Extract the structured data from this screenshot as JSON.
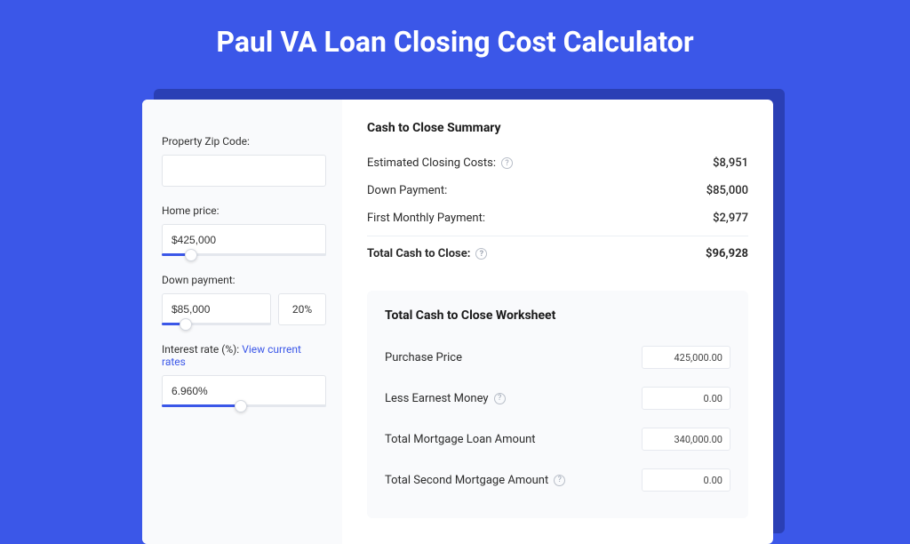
{
  "colors": {
    "page_bg": "#3b57e8",
    "shadow": "#2a3fb5",
    "card_bg": "#ffffff",
    "left_panel_bg": "#f9fafc",
    "input_border": "#e2e5ea",
    "slider_track": "#e4e7ed",
    "slider_fill": "#3b57e8",
    "link": "#3b57e8",
    "text_primary": "#1a1a1a",
    "text_body": "#2b2b2b",
    "help_border": "#b8bec8"
  },
  "hero": {
    "title": "Paul VA Loan Closing Cost Calculator"
  },
  "form": {
    "zip_label": "Property Zip Code:",
    "zip_value": "",
    "home_price_label": "Home price:",
    "home_price_value": "$425,000",
    "home_price_slider_pct": 18,
    "down_payment_label": "Down payment:",
    "down_payment_value": "$85,000",
    "down_payment_pct": "20%",
    "down_payment_slider_pct": 22,
    "interest_label_prefix": "Interest rate (%): ",
    "interest_link_text": "View current rates",
    "interest_value": "6.960%",
    "interest_slider_pct": 48
  },
  "summary": {
    "title": "Cash to Close Summary",
    "rows": [
      {
        "label": "Estimated Closing Costs:",
        "help": true,
        "value": "$8,951"
      },
      {
        "label": "Down Payment:",
        "help": false,
        "value": "$85,000"
      },
      {
        "label": "First Monthly Payment:",
        "help": false,
        "value": "$2,977"
      }
    ],
    "total": {
      "label": "Total Cash to Close:",
      "help": true,
      "value": "$96,928"
    }
  },
  "worksheet": {
    "title": "Total Cash to Close Worksheet",
    "rows": [
      {
        "label": "Purchase Price",
        "help": false,
        "value": "425,000.00"
      },
      {
        "label": "Less Earnest Money",
        "help": true,
        "value": "0.00"
      },
      {
        "label": "Total Mortgage Loan Amount",
        "help": false,
        "value": "340,000.00"
      },
      {
        "label": "Total Second Mortgage Amount",
        "help": true,
        "value": "0.00"
      }
    ]
  }
}
